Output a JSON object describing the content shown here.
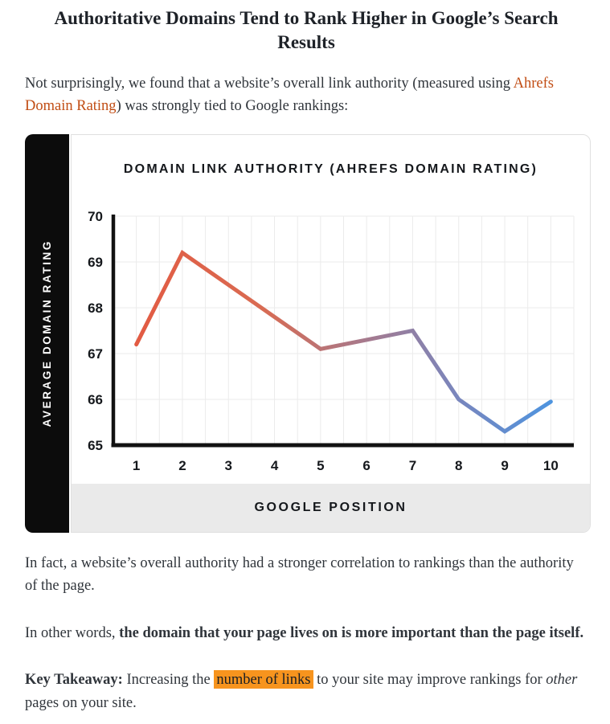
{
  "page": {
    "heading": "Authoritative Domains Tend to Rank Higher in Google’s Search Results",
    "intro": {
      "pre_link": "Not surprisingly, we found that a website’s overall link authority (measured using ",
      "link_text": "Ahrefs Domain Rating",
      "post_link": ") was strongly tied to Google rankings:"
    },
    "para_correlation": "In fact, a website’s overall authority had a stronger correlation to rankings than the authority of the page.",
    "para_other_words": {
      "prefix": "In other words, ",
      "bold": "the domain that your page lives on is more important than the page itself."
    },
    "takeaway": {
      "label": "Key Takeaway:",
      "pre_highlight": " Increasing the ",
      "highlight": "number of links",
      "mid": " to your site may improve rankings for ",
      "italic": "other",
      "post": " pages on your site."
    }
  },
  "colors": {
    "link": "#c14d14",
    "highlight": "#f7941e",
    "axis": "#121212",
    "grid": "#ebebeb",
    "band_bg": "#eaeaea",
    "rail_bg": "#0c0c0c",
    "text": "#30353b",
    "chart_text": "#15181c",
    "card_border": "#e0e0e0"
  },
  "chart_data": {
    "type": "line",
    "title": "DOMAIN LINK AUTHORITY (AHREFS DOMAIN RATING)",
    "xlabel": "GOOGLE POSITION",
    "ylabel": "AVERAGE DOMAIN RATING",
    "x": [
      1,
      2,
      3,
      4,
      5,
      6,
      7,
      8,
      9,
      10
    ],
    "values": [
      67.2,
      69.2,
      68.5,
      67.8,
      67.1,
      67.3,
      67.5,
      66.0,
      65.3,
      65.95
    ],
    "ylim": [
      65,
      70
    ],
    "yticks": [
      70,
      69,
      68,
      67,
      66,
      65
    ],
    "grid": {
      "y_major_interval": 1,
      "x_gridlines_per_position": 2,
      "grid_on": true
    },
    "legend": "none",
    "line_width": 5,
    "line_gradient_stops": [
      {
        "offset": 0.0,
        "color": "#e25b43"
      },
      {
        "offset": 0.3,
        "color": "#d96b52"
      },
      {
        "offset": 0.58,
        "color": "#a17b93"
      },
      {
        "offset": 0.78,
        "color": "#7886be"
      },
      {
        "offset": 1.0,
        "color": "#4e94df"
      }
    ]
  }
}
